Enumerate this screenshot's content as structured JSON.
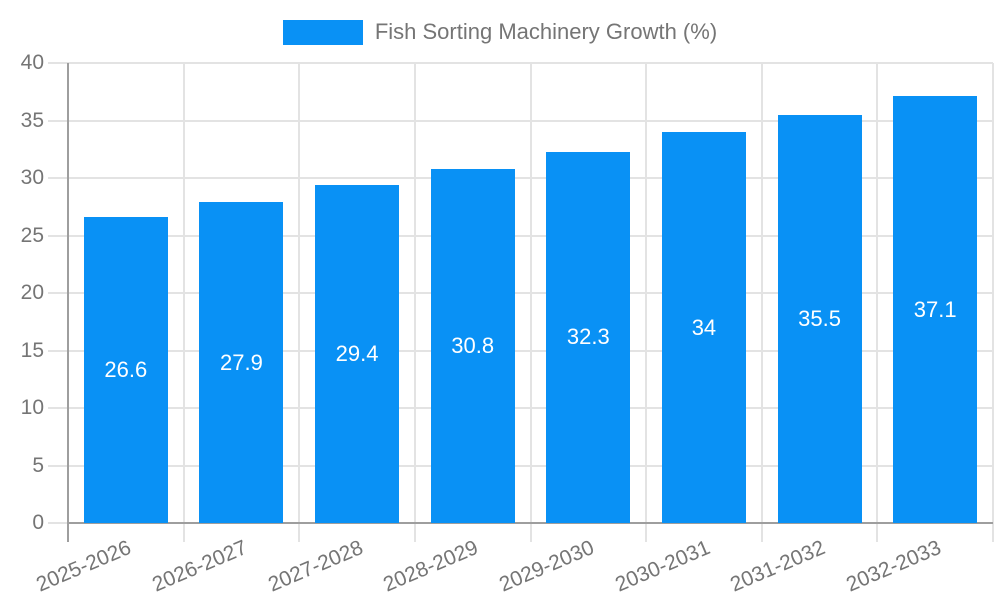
{
  "chart_data": {
    "type": "bar",
    "title": "Fish Sorting Machinery Growth (%)",
    "legend_label": "Fish Sorting Machinery Growth (%)",
    "legend_position": "top-center",
    "categories": [
      "2025-2026",
      "2026-2027",
      "2027-2028",
      "2028-2029",
      "2029-2030",
      "2030-2031",
      "2031-2032",
      "2032-2033"
    ],
    "values": [
      26.6,
      27.9,
      29.4,
      30.8,
      32.3,
      34,
      35.5,
      37.1
    ],
    "value_labels": [
      "26.6",
      "27.9",
      "29.4",
      "30.8",
      "32.3",
      "34",
      "35.5",
      "37.1"
    ],
    "ylim": [
      0,
      40
    ],
    "ytick_step": 5,
    "ytick_labels": [
      "0",
      "5",
      "10",
      "15",
      "20",
      "25",
      "30",
      "35",
      "40"
    ],
    "grid": true,
    "xtick_rotation_deg": -23,
    "colors": {
      "bar": "#0991f5",
      "grid": "#e3e3e3",
      "axis": "#9e9e9e",
      "tick_text": "#757575",
      "value_text": "#ffffff",
      "background": "#ffffff"
    }
  }
}
